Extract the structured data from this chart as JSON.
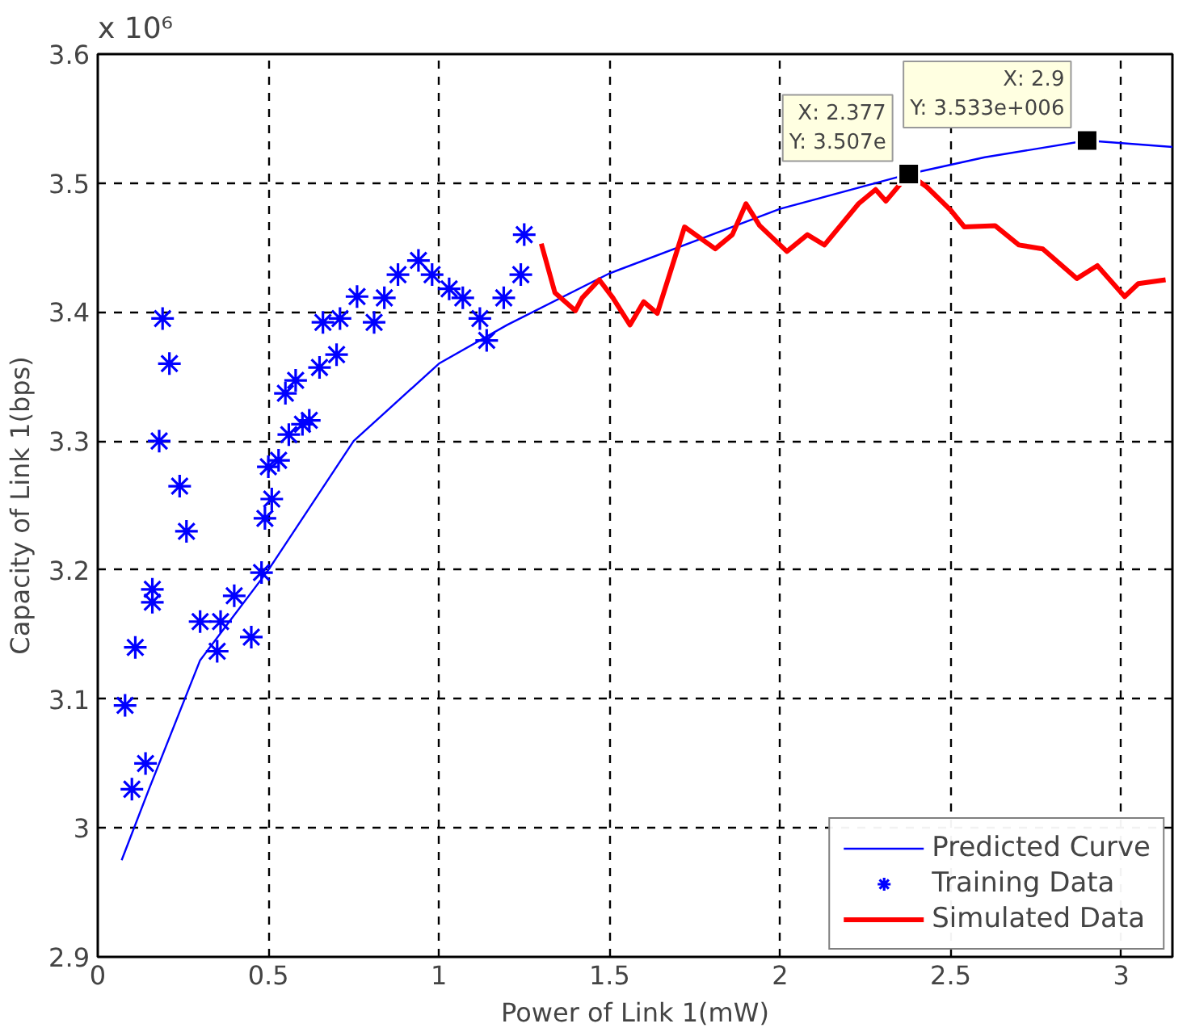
{
  "chart_data": {
    "type": "line",
    "xlabel": "Power of Link 1(mW)",
    "ylabel": "Capacity of Link 1(bps)",
    "xlim": [
      0,
      3.15
    ],
    "ylim": [
      2.9,
      3.6
    ],
    "xticks": [
      0,
      0.5,
      1,
      1.5,
      2,
      2.5,
      3
    ],
    "yticks": [
      2.9,
      3,
      3.1,
      3.2,
      3.3,
      3.4,
      3.5,
      3.6
    ],
    "grid": true,
    "legend": "bottom right",
    "annotations": [
      "x 10⁶",
      {
        "text": "X: 2.377\nY: 3.507e",
        "x": 2.377,
        "y": 3.507
      },
      {
        "text": "X: 2.9\nY: 3.533e+006",
        "x": 2.9,
        "y": 3.533
      }
    ],
    "series": [
      {
        "name": "Predicted Curve",
        "color": "#0000ff",
        "x": [
          0.07,
          0.15,
          0.3,
          0.5,
          0.75,
          1.0,
          1.2,
          1.5,
          2.0,
          2.377,
          2.6,
          2.9,
          3.15
        ],
        "values": [
          2.975,
          3.03,
          3.13,
          3.2,
          3.3,
          3.36,
          3.39,
          3.43,
          3.48,
          3.507,
          3.52,
          3.533,
          3.528
        ]
      },
      {
        "name": "Training Data",
        "type": "scatter",
        "marker": "cross",
        "color": "#0000ff",
        "x": [
          0.19,
          0.21,
          0.18,
          0.24,
          0.26,
          0.16,
          0.16,
          0.11,
          0.08,
          0.1,
          0.14,
          0.3,
          0.36,
          0.35,
          0.45,
          0.4,
          0.48,
          0.49,
          0.51,
          0.5,
          0.53,
          0.56,
          0.62,
          0.6,
          0.55,
          0.58,
          0.65,
          0.7,
          0.66,
          0.71,
          0.76,
          0.81,
          0.84,
          0.88,
          0.94,
          0.98,
          1.03,
          1.07,
          1.12,
          1.14,
          1.19,
          1.24,
          1.25
        ],
        "values": [
          3.395,
          3.36,
          3.3,
          3.265,
          3.23,
          3.185,
          3.175,
          3.14,
          3.095,
          3.03,
          3.05,
          3.16,
          3.16,
          3.137,
          3.148,
          3.18,
          3.198,
          3.24,
          3.255,
          3.28,
          3.285,
          3.305,
          3.316,
          3.313,
          3.337,
          3.347,
          3.357,
          3.367,
          3.392,
          3.395,
          3.412,
          3.392,
          3.411,
          3.429,
          3.44,
          3.429,
          3.418,
          3.411,
          3.395,
          3.378,
          3.411,
          3.429,
          3.46
        ]
      },
      {
        "name": "Simulated Data",
        "color": "#ff0000",
        "x": [
          1.3,
          1.34,
          1.4,
          1.42,
          1.47,
          1.51,
          1.56,
          1.6,
          1.64,
          1.72,
          1.81,
          1.86,
          1.9,
          1.94,
          2.02,
          2.08,
          2.13,
          2.23,
          2.28,
          2.31,
          2.377,
          2.43,
          2.5,
          2.54,
          2.63,
          2.7,
          2.77,
          2.87,
          2.93,
          3.01,
          3.05,
          3.13
        ],
        "values": [
          3.453,
          3.415,
          3.401,
          3.411,
          3.425,
          3.411,
          3.39,
          3.408,
          3.399,
          3.466,
          3.449,
          3.46,
          3.484,
          3.467,
          3.447,
          3.46,
          3.452,
          3.484,
          3.495,
          3.486,
          3.507,
          3.497,
          3.479,
          3.466,
          3.467,
          3.452,
          3.449,
          3.426,
          3.436,
          3.412,
          3.422,
          3.425
        ]
      }
    ]
  }
}
